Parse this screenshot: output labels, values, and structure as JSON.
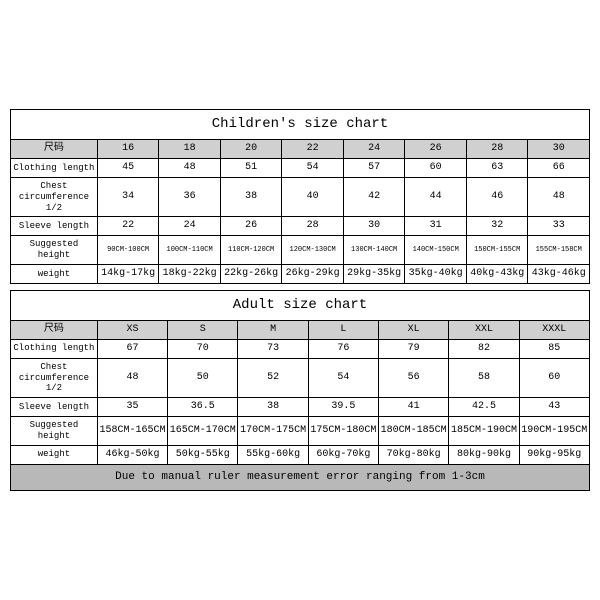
{
  "children": {
    "title": "Children's size chart",
    "label_header": "尺码",
    "sizes": [
      "16",
      "18",
      "20",
      "22",
      "24",
      "26",
      "28",
      "30"
    ],
    "rows": [
      {
        "label": "Clothing length",
        "vals": [
          "45",
          "48",
          "51",
          "54",
          "57",
          "60",
          "63",
          "66"
        ],
        "small": false
      },
      {
        "label": "Chest circumference 1/2",
        "vals": [
          "34",
          "36",
          "38",
          "40",
          "42",
          "44",
          "46",
          "48"
        ],
        "small": false
      },
      {
        "label": "Sleeve length",
        "vals": [
          "22",
          "24",
          "26",
          "28",
          "30",
          "31",
          "32",
          "33"
        ],
        "small": false
      },
      {
        "label": "Suggested height",
        "vals": [
          "90CM-100CM",
          "100CM-110CM",
          "110CM-120CM",
          "120CM-130CM",
          "130CM-140CM",
          "140CM-150CM",
          "150CM-155CM",
          "155CM-158CM"
        ],
        "small": true
      },
      {
        "label": "weight",
        "vals": [
          "14kg-17kg",
          "18kg-22kg",
          "22kg-26kg",
          "26kg-29kg",
          "29kg-35kg",
          "35kg-40kg",
          "40kg-43kg",
          "43kg-46kg"
        ],
        "small": false
      }
    ]
  },
  "adult": {
    "title": "Adult size chart",
    "label_header": "尺码",
    "sizes": [
      "XS",
      "S",
      "M",
      "L",
      "XL",
      "XXL",
      "XXXL"
    ],
    "rows": [
      {
        "label": "Clothing length",
        "vals": [
          "67",
          "70",
          "73",
          "76",
          "79",
          "82",
          "85"
        ],
        "small": false
      },
      {
        "label": "Chest circumference 1/2",
        "vals": [
          "48",
          "50",
          "52",
          "54",
          "56",
          "58",
          "60"
        ],
        "small": false
      },
      {
        "label": "Sleeve length",
        "vals": [
          "35",
          "36.5",
          "38",
          "39.5",
          "41",
          "42.5",
          "43"
        ],
        "small": false
      },
      {
        "label": "Suggested height",
        "vals": [
          "158CM-165CM",
          "165CM-170CM",
          "170CM-175CM",
          "175CM-180CM",
          "180CM-185CM",
          "185CM-190CM",
          "190CM-195CM"
        ],
        "small": false
      },
      {
        "label": "weight",
        "vals": [
          "46kg-50kg",
          "50kg-55kg",
          "55kg-60kg",
          "60kg-70kg",
          "70kg-80kg",
          "80kg-90kg",
          "90kg-95kg"
        ],
        "small": false
      }
    ],
    "note": "Due to manual ruler measurement error ranging from 1-3cm"
  },
  "colors": {
    "header_bg": "#d0d0d0",
    "note_bg": "#b8b8b8",
    "border": "#000000",
    "bg": "#ffffff"
  }
}
